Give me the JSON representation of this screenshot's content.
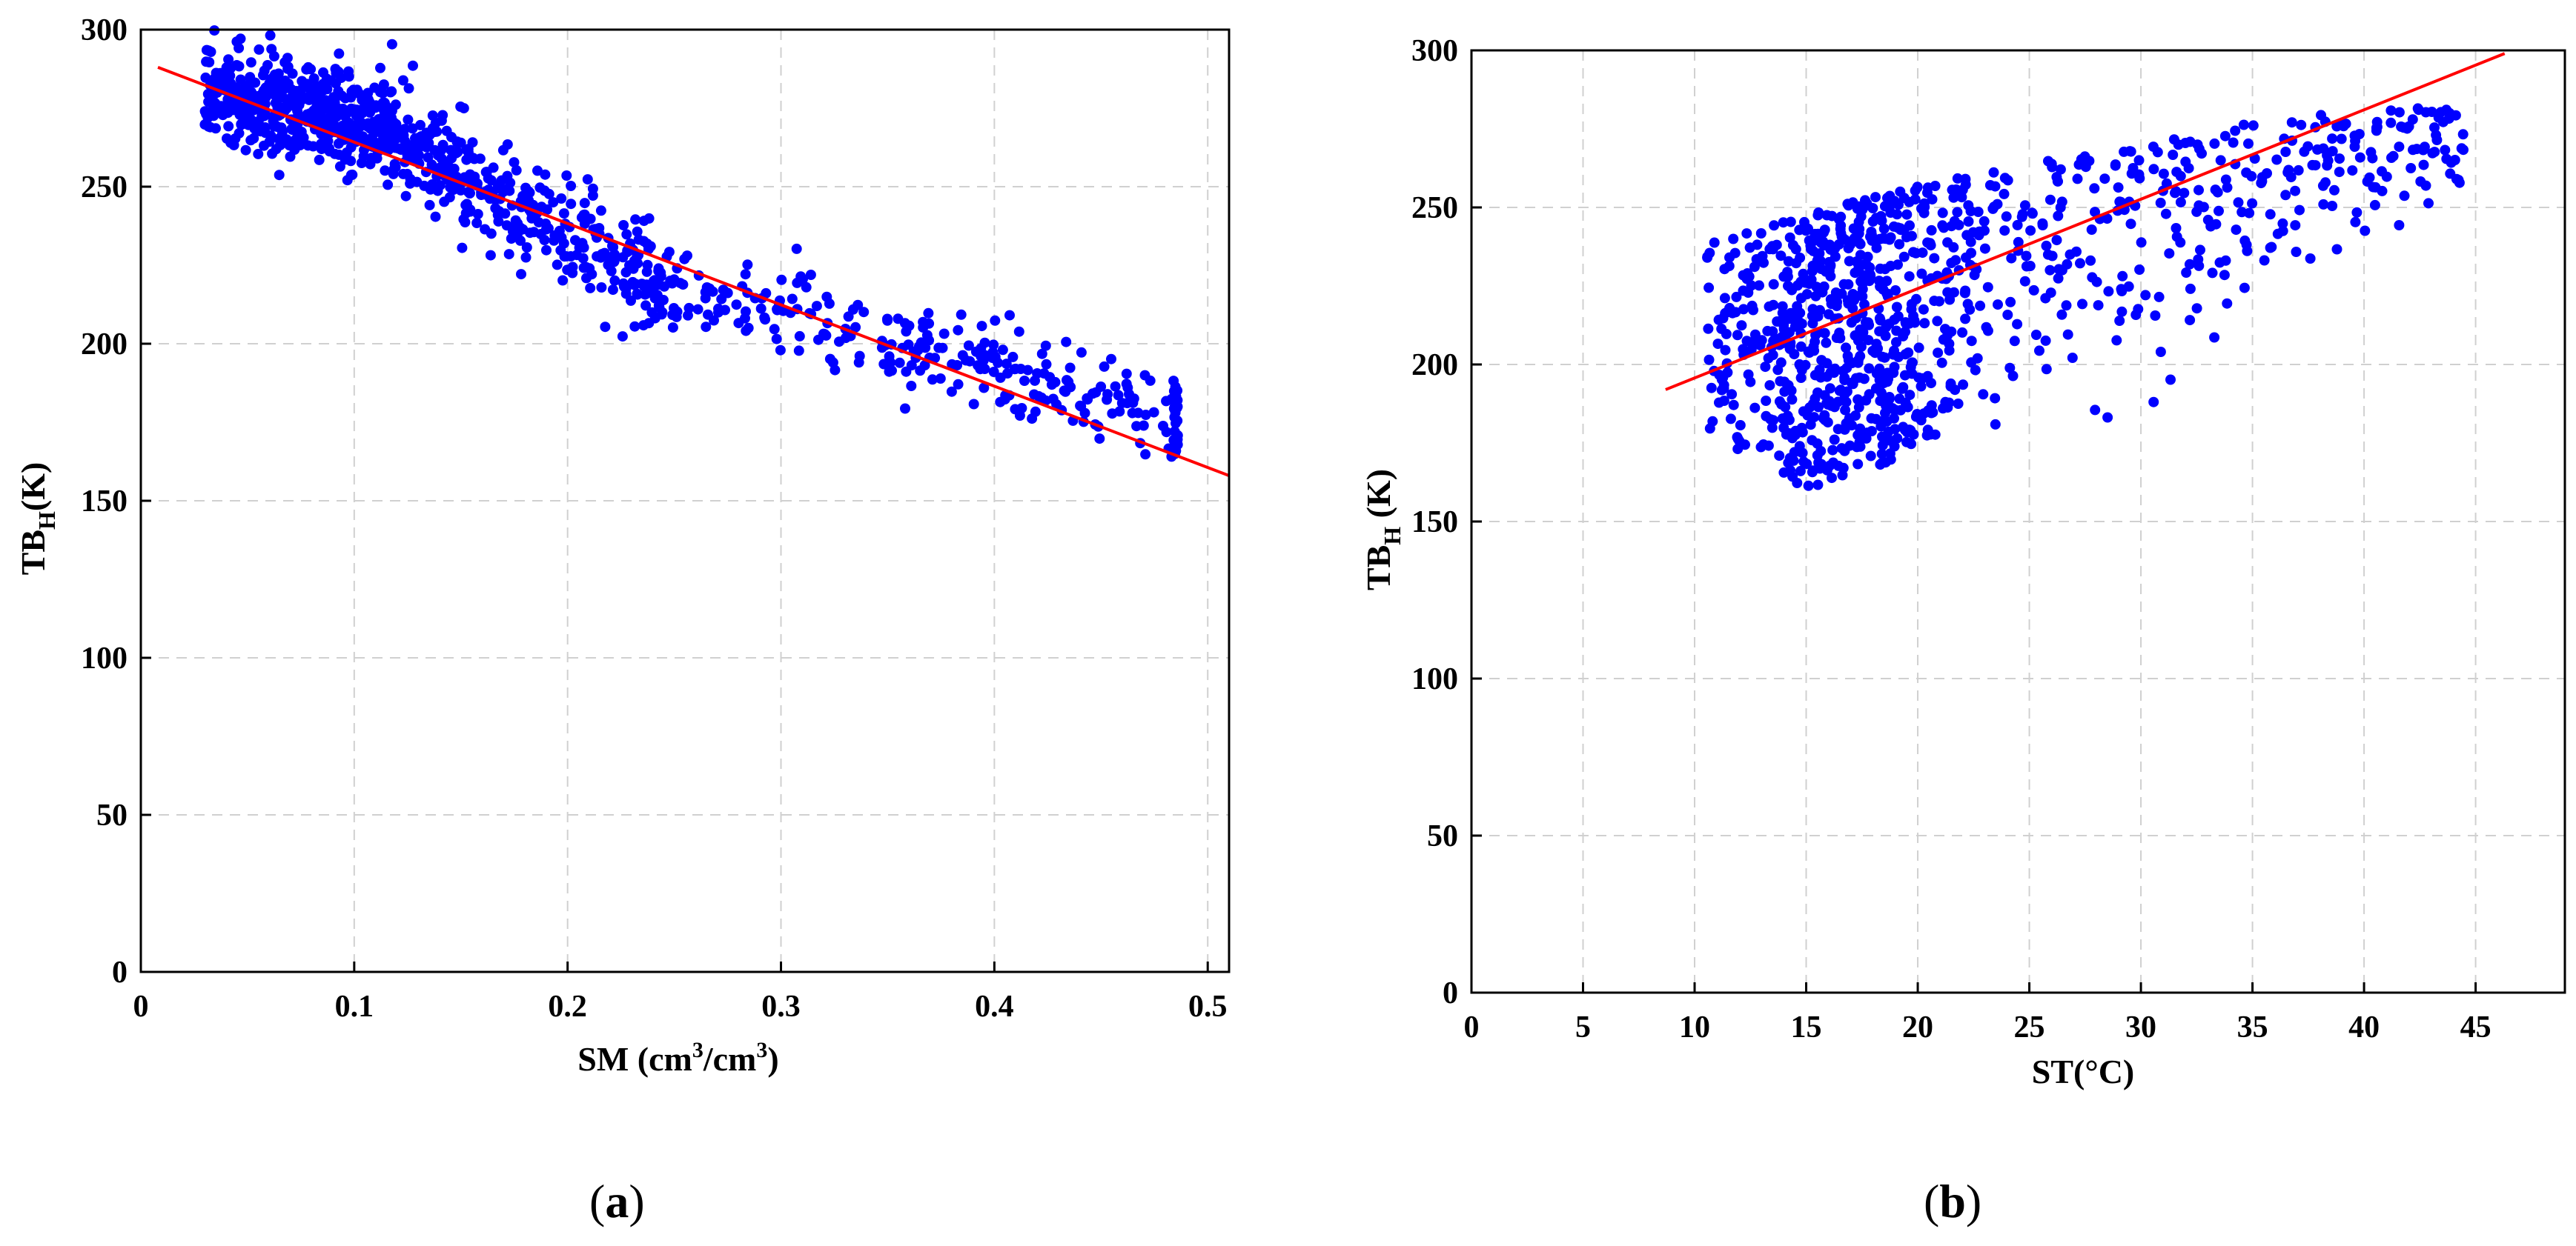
{
  "chart_data": [
    {
      "id": "a",
      "type": "scatter",
      "caption_open": "(",
      "caption_letter": "a",
      "caption_close": ")",
      "xlabel": "SM (cm³/cm³)",
      "xlabel_parts": {
        "pre": "SM (cm",
        "sup1": "3",
        "mid": "/cm",
        "sup2": "3",
        "post": ")"
      },
      "ylabel_parts": {
        "pre": "TB",
        "sub": "H",
        "post": "(K)"
      },
      "xlim": [
        0,
        0.51
      ],
      "ylim": [
        0,
        300
      ],
      "xticks": [
        0,
        0.1,
        0.2,
        0.3,
        0.4,
        0.5
      ],
      "xtick_labels": [
        "0",
        "0.1",
        "0.2",
        "0.3",
        "0.4",
        "0.5"
      ],
      "yticks": [
        0,
        50,
        100,
        150,
        200,
        250,
        300
      ],
      "ytick_labels": [
        "0",
        "50",
        "100",
        "150",
        "200",
        "250",
        "300"
      ],
      "grid": true,
      "point_color": "#0000ff",
      "fit_line": {
        "color": "#ff0000",
        "x": [
          0.008,
          0.51
        ],
        "y": [
          288,
          158
        ]
      },
      "cloud": {
        "n": 1100,
        "seed": 7,
        "segments": [
          {
            "x0": 0.03,
            "x1": 0.12,
            "weight": 0.45,
            "center": [
              280,
              268
            ],
            "spread": 12
          },
          {
            "x0": 0.12,
            "x1": 0.25,
            "weight": 0.32,
            "center": [
              265,
              218
            ],
            "spread": 14
          },
          {
            "x0": 0.25,
            "x1": 0.485,
            "weight": 0.23,
            "center": [
              218,
              178
            ],
            "spread": 12
          }
        ],
        "edge_x": 0.485,
        "edge_n": 25,
        "edge_y": [
          163,
          188
        ]
      }
    },
    {
      "id": "b",
      "type": "scatter",
      "caption_open": "(",
      "caption_letter": "b",
      "caption_close": ")",
      "xlabel": "ST(°C)",
      "ylabel_parts": {
        "pre": "TB",
        "sub": "H",
        "post": " (K)"
      },
      "xlim": [
        0,
        49
      ],
      "ylim": [
        0,
        300
      ],
      "xticks": [
        0,
        5,
        10,
        15,
        20,
        25,
        30,
        35,
        40,
        45
      ],
      "xtick_labels": [
        "0",
        "5",
        "10",
        "15",
        "20",
        "25",
        "30",
        "35",
        "40",
        "45"
      ],
      "yticks": [
        0,
        50,
        100,
        150,
        200,
        250,
        300
      ],
      "ytick_labels": [
        "0",
        "50",
        "100",
        "150",
        "200",
        "250",
        "300"
      ],
      "grid": true,
      "point_color": "#0000ff",
      "fit_line": {
        "color": "#ff0000",
        "x": [
          8.7,
          46.3
        ],
        "y": [
          192,
          299
        ]
      },
      "cloud": {
        "n": 1050,
        "seed": 13,
        "x_range": [
          10.5,
          44.5
        ],
        "x_peak": 17,
        "upper_edge": [
          [
            10,
            240
          ],
          [
            15,
            248
          ],
          [
            20,
            257
          ],
          [
            25,
            264
          ],
          [
            30,
            270
          ],
          [
            35,
            277
          ],
          [
            40,
            282
          ],
          [
            45,
            282
          ]
        ],
        "lower_edge": [
          [
            10,
            180
          ],
          [
            15,
            160
          ],
          [
            20,
            172
          ],
          [
            25,
            178
          ],
          [
            30,
            180
          ],
          [
            35,
            200
          ],
          [
            40,
            225
          ],
          [
            45,
            250
          ]
        ]
      }
    }
  ]
}
